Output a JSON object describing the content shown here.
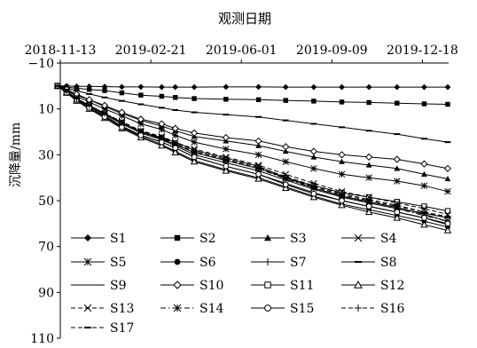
{
  "chart_data": {
    "type": "line",
    "title": "观测日期",
    "xlabel": "",
    "ylabel": "沉降量/mm",
    "x_axis_position": "top",
    "y_axis_inverted": true,
    "x_ticks": [
      "2018-11-13",
      "2019-02-21",
      "2019-06-01",
      "2019-09-09",
      "2019-12-18"
    ],
    "y_ticks": [
      -10,
      10,
      30,
      50,
      70,
      90,
      110
    ],
    "xlim": [
      "2018-11-13",
      "2020-01-16"
    ],
    "ylim": [
      -10,
      110
    ],
    "grid": false,
    "legend_position": "lower-left inside",
    "x": [
      "2018-11-10",
      "2018-11-20",
      "2018-12-01",
      "2018-12-15",
      "2019-01-01",
      "2019-01-20",
      "2019-02-10",
      "2019-03-05",
      "2019-03-20",
      "2019-04-10",
      "2019-05-15",
      "2019-06-20",
      "2019-07-20",
      "2019-08-20",
      "2019-09-20",
      "2019-10-20",
      "2019-11-20",
      "2019-12-20",
      "2020-01-15"
    ],
    "series": [
      {
        "name": "S1",
        "marker": "diamond",
        "dash": "solid",
        "values": [
          0,
          0,
          0.2,
          0.2,
          0.3,
          0.4,
          0.4,
          0.5,
          0.5,
          0.5,
          0.4,
          0.4,
          0.5,
          0.5,
          0.5,
          0.5,
          0.5,
          0.5,
          0.5
        ]
      },
      {
        "name": "S2",
        "marker": "square",
        "dash": "solid",
        "values": [
          0,
          0.5,
          1.0,
          1.5,
          2.0,
          3.0,
          4.0,
          4.5,
          5.0,
          5.5,
          5.8,
          6.0,
          6.3,
          6.6,
          7.0,
          7.2,
          7.5,
          7.8,
          8.0
        ]
      },
      {
        "name": "S3",
        "marker": "triangle",
        "dash": "solid",
        "values": [
          0,
          2.0,
          4.0,
          6.0,
          9.0,
          12.0,
          15.0,
          17.5,
          19.5,
          22.0,
          24.0,
          26.0,
          28.5,
          31.0,
          33.0,
          34.5,
          36.0,
          38.5,
          40.5
        ]
      },
      {
        "name": "S4",
        "marker": "x",
        "dash": "solid",
        "values": [
          0,
          2.5,
          5.5,
          8.5,
          12.0,
          16.0,
          20.0,
          22.5,
          24.5,
          28.0,
          31.5,
          35.0,
          40.0,
          44.5,
          48.0,
          50.5,
          53.0,
          56.0,
          59.0
        ]
      },
      {
        "name": "S5",
        "marker": "asterisk",
        "dash": "solid",
        "values": [
          0,
          2.0,
          4.5,
          7.0,
          10.0,
          13.0,
          16.5,
          19.0,
          21.5,
          24.5,
          27.5,
          30.0,
          33.0,
          36.0,
          38.5,
          40.0,
          41.5,
          43.5,
          46.0
        ]
      },
      {
        "name": "S6",
        "marker": "filled-circle",
        "dash": "solid",
        "values": [
          0,
          3.0,
          6.0,
          9.5,
          13.5,
          18.0,
          22.0,
          25.5,
          28.5,
          32.5,
          36.5,
          40.0,
          44.0,
          48.0,
          51.5,
          54.0,
          56.5,
          59.0,
          61.5
        ]
      },
      {
        "name": "S7",
        "marker": "plus",
        "dash": "solid",
        "values": [
          0,
          2.5,
          5.5,
          8.5,
          12.5,
          16.5,
          20.5,
          23.5,
          26.0,
          30.0,
          33.5,
          37.0,
          41.0,
          45.0,
          48.5,
          51.0,
          53.5,
          55.5,
          57.5
        ]
      },
      {
        "name": "S8",
        "marker": "dash",
        "dash": "solid",
        "values": [
          0,
          1.0,
          2.0,
          3.5,
          5.0,
          6.5,
          8.0,
          9.5,
          10.5,
          11.5,
          12.5,
          13.5,
          15.0,
          16.5,
          18.0,
          19.5,
          21.0,
          23.0,
          24.5
        ]
      },
      {
        "name": "S9",
        "marker": "none",
        "dash": "solid",
        "values": [
          0,
          2.5,
          6.0,
          9.0,
          13.0,
          17.5,
          21.5,
          24.5,
          27.0,
          31.0,
          35.0,
          38.5,
          42.5,
          46.5,
          50.0,
          52.5,
          55.0,
          57.5,
          60.5
        ]
      },
      {
        "name": "S10",
        "marker": "open-diamond",
        "dash": "solid",
        "values": [
          0,
          1.5,
          3.5,
          6.0,
          8.5,
          11.5,
          14.5,
          16.5,
          18.5,
          20.5,
          22.5,
          24.0,
          26.5,
          28.5,
          30.0,
          31.0,
          32.0,
          34.0,
          36.0
        ]
      },
      {
        "name": "S11",
        "marker": "open-square",
        "dash": "solid",
        "values": [
          0,
          2.5,
          5.5,
          8.5,
          12.0,
          16.0,
          20.0,
          23.0,
          25.5,
          29.0,
          32.5,
          36.0,
          40.0,
          43.5,
          46.5,
          48.5,
          50.5,
          52.5,
          54.5
        ]
      },
      {
        "name": "S12",
        "marker": "open-triangle",
        "dash": "solid",
        "values": [
          0,
          3.0,
          6.5,
          10.0,
          14.0,
          18.5,
          22.5,
          26.0,
          29.0,
          33.0,
          37.0,
          40.5,
          44.5,
          48.5,
          52.0,
          55.0,
          57.5,
          60.5,
          63.0
        ]
      },
      {
        "name": "S13",
        "marker": "x",
        "dash": "dashed",
        "values": [
          0,
          2.5,
          5.5,
          8.5,
          12.0,
          15.5,
          19.5,
          22.0,
          24.5,
          27.5,
          31.0,
          34.5,
          38.5,
          42.5,
          46.0,
          48.5,
          51.0,
          53.5,
          56.0
        ]
      },
      {
        "name": "S14",
        "marker": "asterisk",
        "dash": "dashdot",
        "values": [
          0,
          2.5,
          5.5,
          8.5,
          12.0,
          16.0,
          20.0,
          22.5,
          25.5,
          29.0,
          32.5,
          36.0,
          40.5,
          44.5,
          48.0,
          51.0,
          53.5,
          56.5,
          59.0
        ]
      },
      {
        "name": "S15",
        "marker": "open-circle",
        "dash": "solid",
        "values": [
          0,
          3.0,
          6.0,
          9.5,
          13.5,
          18.0,
          21.5,
          24.5,
          27.0,
          31.0,
          35.0,
          38.5,
          43.0,
          47.0,
          50.0,
          52.5,
          55.0,
          57.5,
          60.0
        ]
      },
      {
        "name": "S16",
        "marker": "plus",
        "dash": "dashed",
        "values": [
          0,
          2.5,
          5.5,
          8.5,
          12.0,
          16.0,
          19.5,
          22.5,
          25.0,
          28.5,
          32.0,
          35.5,
          39.5,
          43.5,
          47.0,
          49.5,
          52.0,
          55.0,
          57.5
        ]
      },
      {
        "name": "S17",
        "marker": "dash",
        "dash": "dashed",
        "values": [
          0,
          2.5,
          5.5,
          8.5,
          12.0,
          16.0,
          20.0,
          23.0,
          25.5,
          29.0,
          32.5,
          36.0,
          40.0,
          44.0,
          47.5,
          50.0,
          52.5,
          55.0,
          57.0
        ]
      }
    ]
  }
}
